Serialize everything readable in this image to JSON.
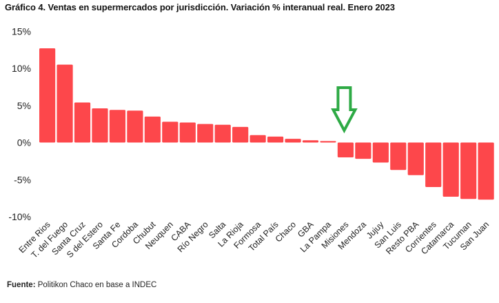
{
  "title": "Gráfico 4. Ventas en supermercados por jurisdicción. Variación % interanual real. Enero 2023",
  "source": {
    "label": "Fuente:",
    "text": " Politikon Chaco en base a INDEC"
  },
  "colors": {
    "bar": "#fd474b",
    "arrow_stroke": "#2eaa45",
    "arrow_fill": "#ffffff"
  },
  "annotation": {
    "type": "arrow-down",
    "points_to": "Misiones"
  },
  "chart_data": {
    "type": "bar",
    "title": "Gráfico 4. Ventas en supermercados por jurisdicción. Variación % interanual real. Enero 2023",
    "xlabel": "",
    "ylabel": "",
    "ylim": [
      -10,
      15
    ],
    "yticks": [
      15,
      10,
      5,
      0,
      -5,
      -10
    ],
    "ytick_labels": [
      "15%",
      "10%",
      "5%",
      "0%",
      "-5%",
      "-10%"
    ],
    "grid": false,
    "legend": "none",
    "categories": [
      "Entre Rios",
      "T. del Fuego",
      "Santa Cruz",
      "S del Estero",
      "Santa Fe",
      "Cordoba",
      "Chubut",
      "Neuquen",
      "CABA",
      "Río Negro",
      "Salta",
      "La Rioja",
      "Formosa",
      "Total País",
      "Chaco",
      "GBA",
      "La Pampa",
      "Misiones",
      "Mendoza",
      "Jujuy",
      "San Luis",
      "Resto PBA",
      "Corrientes",
      "Catamarca",
      "Tucuman",
      "San Juan"
    ],
    "values": [
      12.7,
      10.5,
      5.4,
      4.6,
      4.4,
      4.3,
      3.5,
      2.8,
      2.7,
      2.5,
      2.4,
      2.1,
      1.0,
      0.8,
      0.5,
      0.3,
      0.2,
      -2.0,
      -2.2,
      -2.7,
      -3.7,
      -4.4,
      -6.0,
      -7.3,
      -7.6,
      -7.7
    ]
  }
}
